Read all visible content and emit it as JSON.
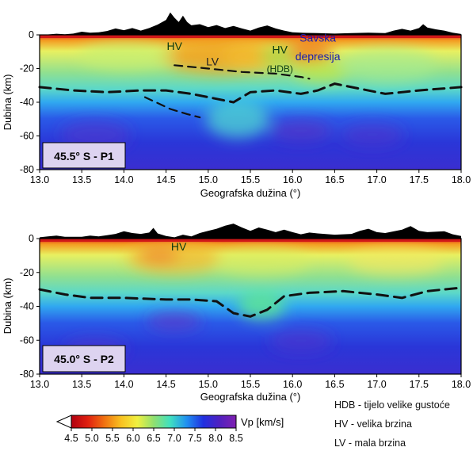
{
  "chart_data": [
    {
      "type": "heatmap",
      "profile_label": "45.5° S - P1",
      "xlabel": "Geografska dužina (°)",
      "ylabel": "Dubina (km)",
      "xlim": [
        13.0,
        18.0
      ],
      "ylim": [
        0,
        -80
      ],
      "x_ticks": [
        "13.0",
        "13.5",
        "14.0",
        "14.5",
        "15.0",
        "15.5",
        "16.0",
        "16.5",
        "17.0",
        "17.5",
        "18.0"
      ],
      "y_ticks": [
        "0",
        "-20",
        "-40",
        "-60",
        "-80"
      ],
      "annotations": [
        {
          "text": "HV",
          "x": 14.6,
          "depth": -9,
          "color": "#0a3a10"
        },
        {
          "text": "LV",
          "x": 15.05,
          "depth": -18,
          "color": "#222222"
        },
        {
          "text": "HV",
          "x": 15.85,
          "depth": -11,
          "color": "#0a3a10"
        },
        {
          "text": "(HDB)",
          "x": 15.85,
          "depth": -22,
          "color": "#0a3a10"
        },
        {
          "text": "Savska",
          "x": 16.3,
          "depth": -4,
          "color": "#1c1cb0"
        },
        {
          "text": "depresija",
          "x": 16.3,
          "depth": -15,
          "color": "#1c1cb0"
        }
      ],
      "moho_line": [
        [
          13.0,
          -31
        ],
        [
          13.4,
          -33
        ],
        [
          13.8,
          -34
        ],
        [
          14.2,
          -33
        ],
        [
          14.5,
          -33
        ],
        [
          14.8,
          -35
        ],
        [
          15.0,
          -37
        ],
        [
          15.3,
          -40
        ],
        [
          15.5,
          -34
        ],
        [
          15.8,
          -33
        ],
        [
          16.1,
          -35
        ],
        [
          16.3,
          -33
        ],
        [
          16.5,
          -29
        ],
        [
          16.8,
          -32
        ],
        [
          17.1,
          -35
        ],
        [
          17.5,
          -33
        ],
        [
          18.0,
          -31
        ]
      ],
      "secondary_lines": [
        [
          [
            14.25,
            -37
          ],
          [
            14.55,
            -44
          ],
          [
            14.75,
            -47
          ],
          [
            14.9,
            -49
          ]
        ],
        [
          [
            14.6,
            -18
          ],
          [
            15.0,
            -20
          ],
          [
            15.4,
            -22
          ],
          [
            15.8,
            -23
          ],
          [
            16.1,
            -25
          ],
          [
            16.2,
            -26
          ]
        ]
      ],
      "topography": [
        [
          13.0,
          0
        ],
        [
          13.1,
          0.2
        ],
        [
          13.2,
          0.5
        ],
        [
          13.3,
          0.3
        ],
        [
          13.4,
          0.6
        ],
        [
          13.5,
          1.5
        ],
        [
          13.6,
          1.0
        ],
        [
          13.7,
          1.2
        ],
        [
          13.8,
          1.8
        ],
        [
          13.9,
          3.0
        ],
        [
          14.0,
          2.2
        ],
        [
          14.1,
          3.2
        ],
        [
          14.2,
          2.0
        ],
        [
          14.3,
          3.2
        ],
        [
          14.4,
          4.8
        ],
        [
          14.5,
          7.0
        ],
        [
          14.55,
          10.5
        ],
        [
          14.6,
          8.0
        ],
        [
          14.65,
          6.0
        ],
        [
          14.7,
          9.0
        ],
        [
          14.75,
          6.0
        ],
        [
          14.8,
          4.5
        ],
        [
          14.9,
          5.0
        ],
        [
          15.0,
          3.6
        ],
        [
          15.1,
          4.6
        ],
        [
          15.2,
          3.2
        ],
        [
          15.3,
          4.2
        ],
        [
          15.4,
          3.0
        ],
        [
          15.5,
          2.0
        ],
        [
          15.6,
          3.4
        ],
        [
          15.7,
          4.4
        ],
        [
          15.8,
          3.0
        ],
        [
          15.9,
          2.0
        ],
        [
          16.0,
          1.2
        ],
        [
          16.1,
          1.0
        ],
        [
          16.3,
          0.8
        ],
        [
          16.5,
          0.6
        ],
        [
          16.7,
          0.8
        ],
        [
          16.9,
          1.0
        ],
        [
          17.1,
          0.8
        ],
        [
          17.2,
          2.0
        ],
        [
          17.3,
          2.8
        ],
        [
          17.4,
          2.0
        ],
        [
          17.5,
          3.2
        ],
        [
          17.55,
          5.0
        ],
        [
          17.6,
          3.4
        ],
        [
          17.7,
          2.6
        ],
        [
          17.8,
          2.0
        ],
        [
          17.9,
          1.0
        ],
        [
          18.0,
          0.4
        ]
      ]
    },
    {
      "type": "heatmap",
      "profile_label": "45.0° S - P2",
      "xlabel": "Geografska dužina (°)",
      "ylabel": "Dubina (km)",
      "xlim": [
        13.0,
        18.0
      ],
      "ylim": [
        0,
        -80
      ],
      "x_ticks": [
        "13.0",
        "13.5",
        "14.0",
        "14.5",
        "15.0",
        "15.5",
        "16.0",
        "16.5",
        "17.0",
        "17.5",
        "18.0"
      ],
      "y_ticks": [
        "0",
        "-20",
        "-40",
        "-60",
        "-80"
      ],
      "annotations": [
        {
          "text": "HV",
          "x": 14.65,
          "depth": -7,
          "color": "#0a3a10"
        }
      ],
      "moho_line": [
        [
          13.0,
          -30
        ],
        [
          13.3,
          -33
        ],
        [
          13.6,
          -35
        ],
        [
          14.0,
          -35
        ],
        [
          14.5,
          -36
        ],
        [
          14.8,
          -36
        ],
        [
          15.1,
          -37
        ],
        [
          15.3,
          -44
        ],
        [
          15.5,
          -46
        ],
        [
          15.7,
          -42
        ],
        [
          15.9,
          -34
        ],
        [
          16.2,
          -32
        ],
        [
          16.6,
          -31
        ],
        [
          17.0,
          -33
        ],
        [
          17.3,
          -35
        ],
        [
          17.6,
          -31
        ],
        [
          18.0,
          -29
        ]
      ],
      "secondary_lines": [],
      "topography": [
        [
          13.0,
          0.6
        ],
        [
          13.1,
          1.0
        ],
        [
          13.2,
          1.4
        ],
        [
          13.3,
          0.8
        ],
        [
          13.5,
          0.8
        ],
        [
          13.6,
          1.4
        ],
        [
          13.7,
          1.0
        ],
        [
          13.8,
          1.6
        ],
        [
          13.9,
          2.2
        ],
        [
          14.0,
          3.4
        ],
        [
          14.1,
          2.6
        ],
        [
          14.2,
          2.2
        ],
        [
          14.3,
          2.8
        ],
        [
          14.35,
          5.0
        ],
        [
          14.4,
          2.4
        ],
        [
          14.5,
          1.2
        ],
        [
          14.6,
          0.6
        ],
        [
          14.7,
          1.8
        ],
        [
          14.8,
          1.0
        ],
        [
          14.9,
          2.6
        ],
        [
          15.0,
          3.6
        ],
        [
          15.1,
          4.6
        ],
        [
          15.2,
          6.0
        ],
        [
          15.3,
          7.0
        ],
        [
          15.4,
          5.2
        ],
        [
          15.5,
          3.6
        ],
        [
          15.6,
          5.2
        ],
        [
          15.7,
          4.2
        ],
        [
          15.8,
          3.0
        ],
        [
          15.9,
          4.2
        ],
        [
          16.0,
          3.0
        ],
        [
          16.1,
          2.0
        ],
        [
          16.2,
          2.8
        ],
        [
          16.3,
          2.4
        ],
        [
          16.5,
          1.8
        ],
        [
          16.7,
          2.2
        ],
        [
          16.8,
          3.6
        ],
        [
          16.9,
          4.6
        ],
        [
          17.0,
          3.0
        ],
        [
          17.1,
          2.6
        ],
        [
          17.3,
          4.2
        ],
        [
          17.4,
          5.8
        ],
        [
          17.5,
          3.6
        ],
        [
          17.6,
          3.0
        ],
        [
          17.8,
          3.4
        ],
        [
          17.9,
          2.0
        ],
        [
          18.0,
          1.2
        ]
      ]
    }
  ],
  "colorbar": {
    "label": "Vp [km/s]",
    "ticks": [
      "4.5",
      "5.0",
      "5.5",
      "6.0",
      "6.5",
      "7.0",
      "7.5",
      "8.0",
      "8.5"
    ],
    "range": [
      4.5,
      8.5
    ],
    "colors": [
      "#b00010",
      "#e02010",
      "#f07010",
      "#f8c020",
      "#f0f040",
      "#90e070",
      "#40e0c0",
      "#2090f0",
      "#2030e0",
      "#5020c0",
      "#8020b0"
    ]
  },
  "legend_notes": [
    "HDB - tijelo velike gustoće",
    "HV - velika brzina",
    "LV - mala brzina"
  ]
}
